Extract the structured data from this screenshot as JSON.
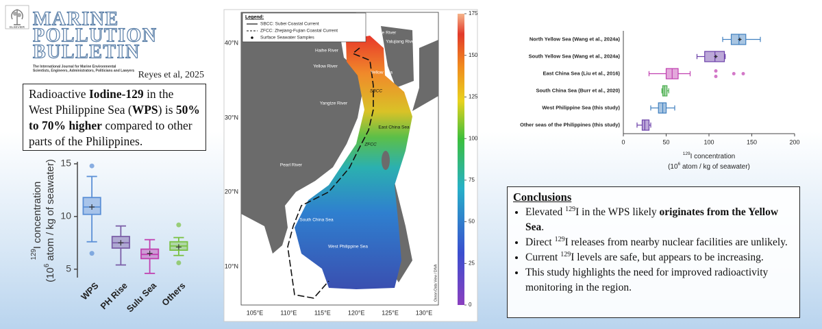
{
  "header": {
    "journal": [
      "MARINE",
      "POLLUTION",
      "BULLETIN"
    ],
    "tagline": [
      "The International Journal for Marine Environmental",
      "Scientists, Engineers, Administrators, Politicians and Lawyers"
    ],
    "publisher": "ELSEVIER",
    "citation": "Reyes et al, 2025"
  },
  "summary": [
    {
      "text": "Radioactive "
    },
    {
      "text": "Iodine-129",
      "bold": true
    },
    {
      "text": " in the West Philippine Sea ("
    },
    {
      "text": "WPS",
      "bold": true
    },
    {
      "text": ") is "
    },
    {
      "text": "50% to 70% higher",
      "bold": true
    },
    {
      "text": " compared to other parts of the Philippines."
    }
  ],
  "map": {
    "legend": {
      "title": "Legend:",
      "items": [
        "SBCC: Subei Coastal Current",
        "ZFCC: Zhejiang-Fujian Coastal Current",
        "Surface Seawater Samples"
      ]
    },
    "places": [
      "Liaohe River",
      "Yalujiang River",
      "Haihe River",
      "Yellow River",
      "Yellow Sea",
      "SBCC",
      "Yangtze River",
      "East China Sea",
      "ZFCC",
      "Pearl River",
      "South China Sea",
      "West Philippine Sea"
    ],
    "lat_labels": [
      "40°N",
      "30°N",
      "20°N",
      "10°N"
    ],
    "lon_labels": [
      "105°E",
      "110°E",
      "115°E",
      "120°E",
      "125°E",
      "130°E"
    ],
    "credit": "Ocean Data View / DIVA",
    "colorbar": {
      "lim": [
        0,
        175
      ],
      "ticks": [
        0,
        25,
        50,
        75,
        100,
        125,
        150,
        175
      ]
    }
  },
  "conclusions": {
    "title": "Conclusions",
    "items": [
      [
        {
          "text": "Elevated "
        },
        {
          "text": "129",
          "sup": true
        },
        {
          "text": "I in the WPS likely "
        },
        {
          "text": "originates from the Yellow Sea",
          "bold": true
        },
        {
          "text": "."
        }
      ],
      [
        {
          "text": "Direct "
        },
        {
          "text": "129",
          "sup": true
        },
        {
          "text": "I releases from nearby nuclear facilities are unlikely."
        }
      ],
      [
        {
          "text": "Current "
        },
        {
          "text": "129",
          "sup": true
        },
        {
          "text": "I levels are safe, but appears to be increasing."
        }
      ],
      [
        {
          "text": "This study highlights the need for improved radioactivity monitoring in the region."
        }
      ]
    ]
  },
  "chart_data": [
    {
      "type": "box",
      "orientation": "vertical",
      "axis_label": {
        "sup1": "129",
        "line1": "I concentration",
        "line2a": "(10",
        "sup2": "6",
        "line2b": " atom / kg of seawater)"
      },
      "categories": [
        "WPS",
        "PH Rise",
        "Sulu Sea",
        "Others"
      ],
      "colors": [
        "#5b8fd6",
        "#7b5ea7",
        "#c040b0",
        "#7ac143"
      ],
      "stats": [
        {
          "min": 7.6,
          "q1": 10.2,
          "median": 10.9,
          "q3": 11.8,
          "max": 13.8,
          "mean": 10.9,
          "outliers": [
            14.8,
            6.5
          ]
        },
        {
          "min": 5.4,
          "q1": 7.0,
          "median": 7.5,
          "q3": 8.1,
          "max": 9.1,
          "mean": 7.5,
          "outliers": []
        },
        {
          "min": 4.6,
          "q1": 6.0,
          "median": 6.4,
          "q3": 6.9,
          "max": 7.8,
          "mean": 6.5,
          "outliers": []
        },
        {
          "min": 6.3,
          "q1": 6.8,
          "median": 7.2,
          "q3": 7.6,
          "max": 8.0,
          "mean": 7.1,
          "outliers": [
            9.2,
            5.6
          ]
        }
      ],
      "ylim": [
        4.2,
        15
      ],
      "yticks": [
        5,
        10,
        15
      ]
    },
    {
      "type": "box",
      "orientation": "horizontal",
      "axis_label": {
        "sup1": "129",
        "line1": "I concentration",
        "line2a": "(10",
        "sup2": "6",
        "line2b": " atom / kg of seawater)"
      },
      "categories": [
        "North Yellow Sea (Wang et al., 2024a)",
        "South Yellow Sea (Wang et al., 2024a)",
        "East China Sea (Liu et al., 2016)",
        "South China Sea (Burr et al., 2020)",
        "West Philippine Sea (this study)",
        "Other seas of the Philippines (this study)"
      ],
      "colors": [
        "#3f7fbf",
        "#6a3fa8",
        "#c03fb0",
        "#4caf50",
        "#3f7fbf",
        "#6a3fa8"
      ],
      "stats": [
        {
          "min": 116,
          "q1": 126,
          "median": 135,
          "q3": 143,
          "max": 160,
          "mean": 136,
          "outliers": []
        },
        {
          "min": 86,
          "q1": 95,
          "median": 107,
          "q3": 118,
          "max": 119,
          "mean": 108,
          "outliers": []
        },
        {
          "min": 30,
          "q1": 50,
          "median": 57,
          "q3": 64,
          "max": 78,
          "outliers": [
            108,
            108,
            129,
            140
          ]
        },
        {
          "min": 45,
          "q1": 46,
          "median": 48,
          "q3": 51,
          "max": 53,
          "outliers": []
        },
        {
          "min": 32,
          "q1": 41,
          "median": 46,
          "q3": 50,
          "max": 60,
          "outliers": []
        },
        {
          "min": 16,
          "q1": 22,
          "median": 25,
          "q3": 30,
          "max": 32,
          "outliers": []
        }
      ],
      "xlim": [
        0,
        200
      ],
      "xticks": [
        0,
        50,
        100,
        150,
        200
      ]
    }
  ]
}
